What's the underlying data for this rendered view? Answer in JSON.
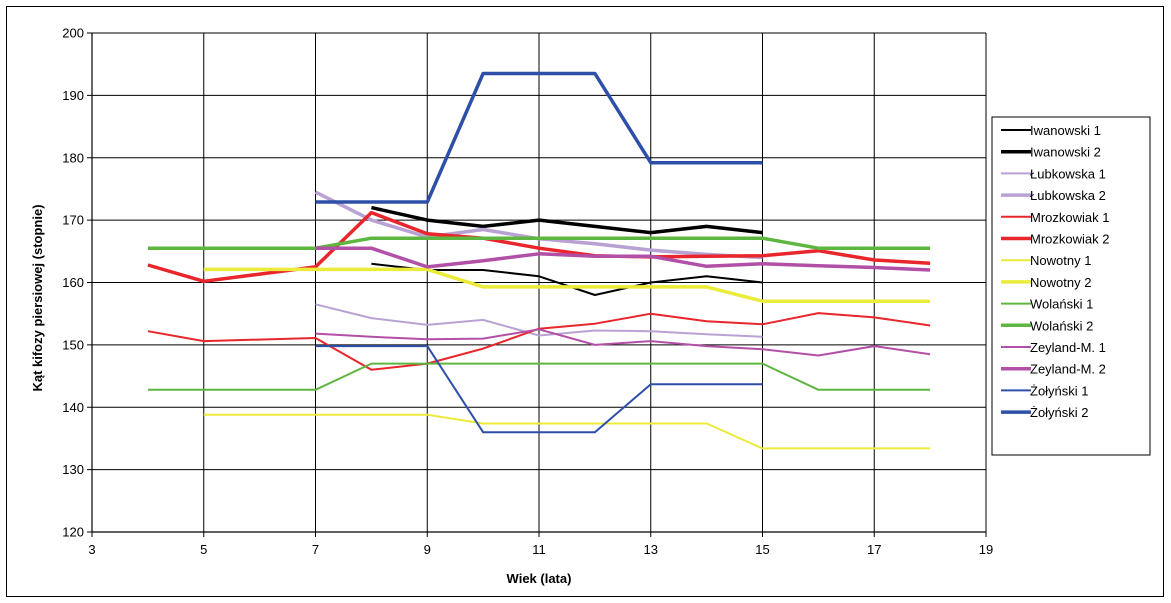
{
  "chart_data": {
    "type": "line",
    "title": "",
    "xlabel": "Wiek (lata)",
    "ylabel": "Kąt kifozy piersiowej (stopnie)",
    "xlim": [
      3,
      19
    ],
    "ylim": [
      120,
      200
    ],
    "x_ticks": [
      3,
      5,
      7,
      9,
      11,
      13,
      15,
      17,
      19
    ],
    "y_ticks": [
      120,
      130,
      140,
      150,
      160,
      170,
      180,
      190,
      200
    ],
    "grid": true,
    "legend_position": "right",
    "series": [
      {
        "name": "Iwanowski 1",
        "color": "#000000",
        "width": 2,
        "points": [
          [
            8,
            163
          ],
          [
            9,
            162
          ],
          [
            10,
            162
          ],
          [
            11,
            161
          ],
          [
            12,
            158
          ],
          [
            13,
            160
          ],
          [
            14,
            161
          ],
          [
            15,
            160
          ]
        ]
      },
      {
        "name": "Iwanowski 2",
        "color": "#000000",
        "width": 3.5,
        "points": [
          [
            8,
            172
          ],
          [
            9,
            170
          ],
          [
            10,
            169
          ],
          [
            11,
            170
          ],
          [
            12,
            169
          ],
          [
            13,
            168
          ],
          [
            14,
            169
          ],
          [
            15,
            168
          ]
        ]
      },
      {
        "name": "Łubkowska 1",
        "color": "#b9a2d3",
        "width": 2,
        "points": [
          [
            7,
            156.5
          ],
          [
            8,
            154.3
          ],
          [
            9,
            153.2
          ],
          [
            10,
            154
          ],
          [
            11,
            151.5
          ],
          [
            12,
            152.3
          ],
          [
            13,
            152.2
          ],
          [
            14,
            151.7
          ],
          [
            15,
            151.3
          ]
        ]
      },
      {
        "name": "Łubkowska 2",
        "color": "#b9a2d3",
        "width": 3.5,
        "points": [
          [
            7,
            174.5
          ],
          [
            8,
            170
          ],
          [
            9,
            167.3
          ],
          [
            10,
            168.5
          ],
          [
            11,
            167
          ],
          [
            12,
            166.2
          ],
          [
            13,
            165.2
          ],
          [
            14,
            164.5
          ],
          [
            15,
            164
          ]
        ]
      },
      {
        "name": "Mrozkowiak 1",
        "color": "#e8262b",
        "width": 2,
        "points": [
          [
            4,
            152.2
          ],
          [
            5,
            150.6
          ],
          [
            7,
            151.1
          ],
          [
            8,
            146
          ],
          [
            9,
            147
          ],
          [
            10,
            149.4
          ],
          [
            11,
            152.6
          ],
          [
            12,
            153.4
          ],
          [
            13,
            155
          ],
          [
            14,
            153.8
          ],
          [
            15,
            153.3
          ],
          [
            16,
            155.1
          ],
          [
            17,
            154.4
          ],
          [
            18,
            153.1
          ]
        ]
      },
      {
        "name": "Mrozkowiak 2",
        "color": "#e8262b",
        "width": 3.5,
        "points": [
          [
            4,
            162.8
          ],
          [
            5,
            160.2
          ],
          [
            7,
            162.5
          ],
          [
            8,
            171.2
          ],
          [
            9,
            167.8
          ],
          [
            10,
            167.1
          ],
          [
            11,
            165.5
          ],
          [
            12,
            164.3
          ],
          [
            13,
            164.1
          ],
          [
            14,
            164.2
          ],
          [
            15,
            164.3
          ],
          [
            16,
            165.1
          ],
          [
            17,
            163.6
          ],
          [
            18,
            163.1
          ]
        ]
      },
      {
        "name": "Nowotny 1",
        "color": "#ebeb3a",
        "width": 2,
        "points": [
          [
            5,
            138.8
          ],
          [
            7,
            138.8
          ],
          [
            8,
            138.8
          ],
          [
            9,
            138.8
          ],
          [
            10,
            137.4
          ],
          [
            11,
            137.4
          ],
          [
            12,
            137.4
          ],
          [
            13,
            137.4
          ],
          [
            14,
            137.4
          ],
          [
            15,
            133.4
          ],
          [
            16,
            133.4
          ],
          [
            17,
            133.4
          ],
          [
            18,
            133.4
          ]
        ]
      },
      {
        "name": "Nowotny 2",
        "color": "#ebeb3a",
        "width": 3.5,
        "points": [
          [
            5,
            162.1
          ],
          [
            7,
            162.1
          ],
          [
            8,
            162.1
          ],
          [
            9,
            162.1
          ],
          [
            10,
            159.3
          ],
          [
            11,
            159.3
          ],
          [
            12,
            159.3
          ],
          [
            13,
            159.3
          ],
          [
            14,
            159.3
          ],
          [
            15,
            157
          ],
          [
            16,
            157
          ],
          [
            17,
            157
          ],
          [
            18,
            157
          ]
        ]
      },
      {
        "name": "Wolański 1",
        "color": "#5db63f",
        "width": 2,
        "points": [
          [
            4,
            142.8
          ],
          [
            5,
            142.8
          ],
          [
            7,
            142.8
          ],
          [
            8,
            147
          ],
          [
            9,
            147
          ],
          [
            10,
            147
          ],
          [
            11,
            147
          ],
          [
            12,
            147
          ],
          [
            13,
            147
          ],
          [
            14,
            147
          ],
          [
            15,
            147
          ],
          [
            16,
            142.8
          ],
          [
            17,
            142.8
          ],
          [
            18,
            142.8
          ]
        ]
      },
      {
        "name": "Wolański 2",
        "color": "#5db63f",
        "width": 3.5,
        "points": [
          [
            4,
            165.5
          ],
          [
            5,
            165.5
          ],
          [
            7,
            165.5
          ],
          [
            8,
            167.1
          ],
          [
            9,
            167.1
          ],
          [
            10,
            167.1
          ],
          [
            11,
            167.1
          ],
          [
            12,
            167.1
          ],
          [
            13,
            167.1
          ],
          [
            14,
            167.1
          ],
          [
            15,
            167.1
          ],
          [
            16,
            165.5
          ],
          [
            17,
            165.5
          ],
          [
            18,
            165.5
          ]
        ]
      },
      {
        "name": "Zeyland-M. 1",
        "color": "#b24fa7",
        "width": 2,
        "points": [
          [
            7,
            151.8
          ],
          [
            8,
            151.3
          ],
          [
            9,
            150.9
          ],
          [
            10,
            151
          ],
          [
            11,
            152.5
          ],
          [
            12,
            150
          ],
          [
            13,
            150.6
          ],
          [
            14,
            149.8
          ],
          [
            15,
            149.3
          ],
          [
            16,
            148.3
          ],
          [
            17,
            149.8
          ],
          [
            18,
            148.5
          ]
        ]
      },
      {
        "name": "Zeyland-M. 2",
        "color": "#b24fa7",
        "width": 3.5,
        "points": [
          [
            7,
            165.5
          ],
          [
            8,
            165.5
          ],
          [
            9,
            162.5
          ],
          [
            10,
            163.5
          ],
          [
            11,
            164.6
          ],
          [
            12,
            164.2
          ],
          [
            13,
            164.2
          ],
          [
            14,
            162.6
          ],
          [
            15,
            163
          ],
          [
            16,
            162.7
          ],
          [
            17,
            162.4
          ],
          [
            18,
            162
          ]
        ]
      },
      {
        "name": "Żołyński 1",
        "color": "#2e4fa8",
        "width": 2,
        "points": [
          [
            7,
            149.8
          ],
          [
            8,
            149.8
          ],
          [
            9,
            149.8
          ],
          [
            10,
            136
          ],
          [
            11,
            136
          ],
          [
            12,
            136
          ],
          [
            13,
            143.7
          ],
          [
            14,
            143.7
          ],
          [
            15,
            143.7
          ]
        ]
      },
      {
        "name": "Żołyński 2",
        "color": "#2e4fa8",
        "width": 3.5,
        "points": [
          [
            7,
            172.9
          ],
          [
            8,
            172.9
          ],
          [
            9,
            172.9
          ],
          [
            10,
            193.5
          ],
          [
            11,
            193.5
          ],
          [
            12,
            193.5
          ],
          [
            13,
            179.2
          ],
          [
            14,
            179.2
          ],
          [
            15,
            179.2
          ]
        ]
      }
    ]
  }
}
